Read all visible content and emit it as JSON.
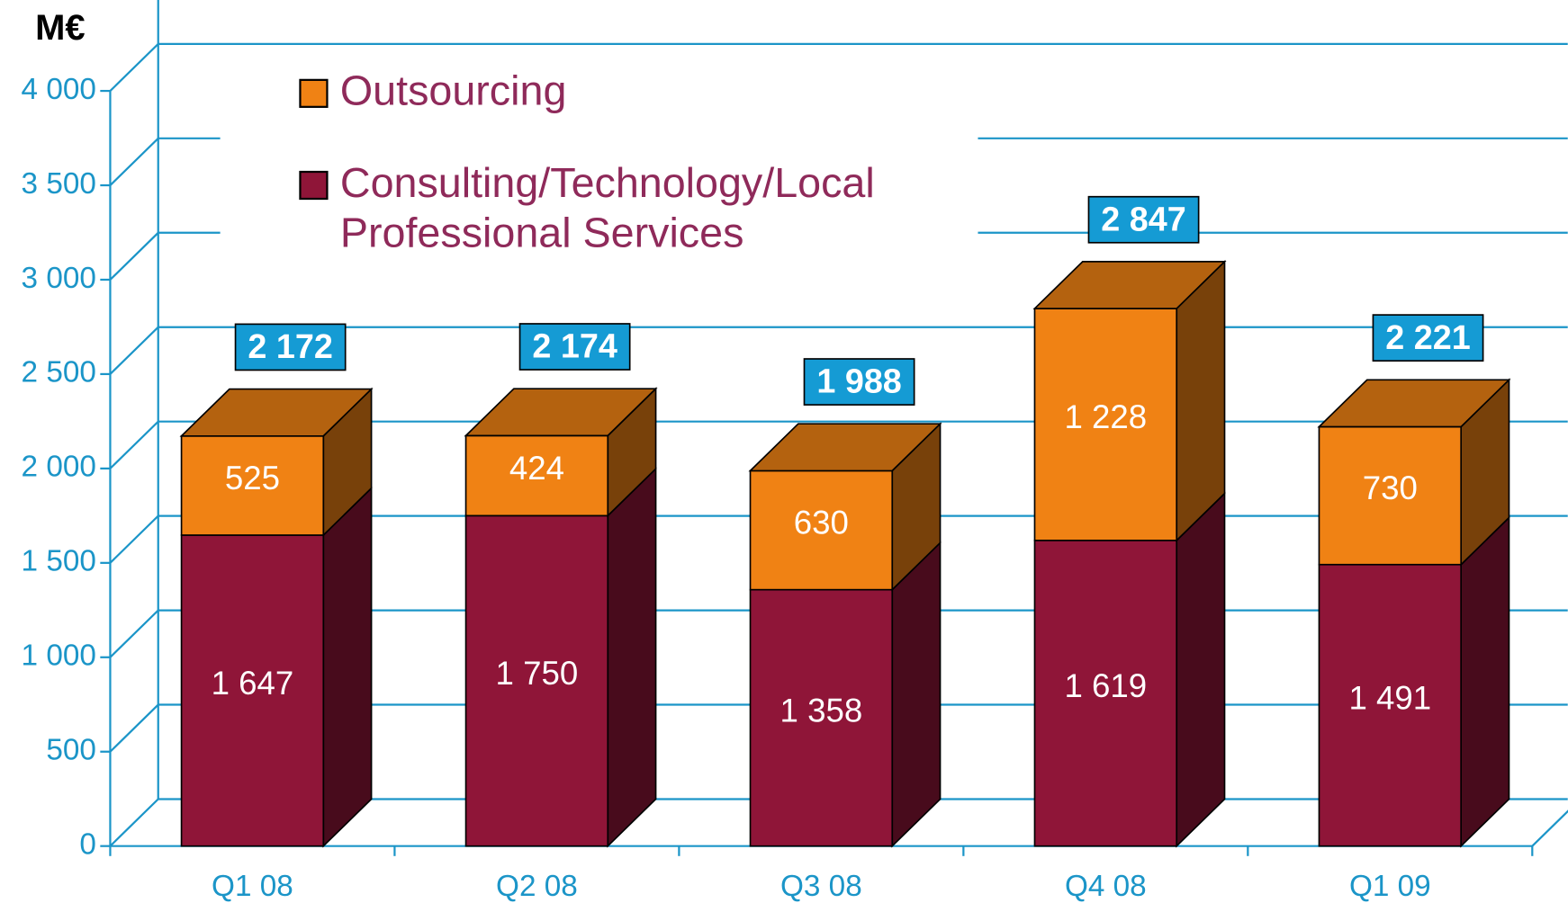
{
  "chart_data": {
    "type": "bar3d_stacked",
    "y_axis_label": "M€",
    "categories": [
      "Q1 08",
      "Q2 08",
      "Q3 08",
      "Q4 08",
      "Q1 09"
    ],
    "series": [
      {
        "name": "Consulting/Technology/Local Professional Services",
        "color": "#8f1538",
        "values": [
          1647,
          1750,
          1358,
          1619,
          1491
        ],
        "value_labels": [
          "1 647",
          "1 750",
          "1 358",
          "1 619",
          "1 491"
        ]
      },
      {
        "name": "Outsourcing",
        "color": "#f08214",
        "values": [
          525,
          424,
          630,
          1228,
          730
        ],
        "value_labels": [
          "525",
          "424",
          "630",
          "1 228",
          "730"
        ]
      }
    ],
    "totals": {
      "values": [
        2172,
        2174,
        1988,
        2847,
        2221
      ],
      "value_labels": [
        "2 172",
        "2 174",
        "1 988",
        "2 847",
        "2 221"
      ],
      "color": "#159bd4"
    },
    "ylim": [
      0,
      4000
    ],
    "yticks": [
      0,
      500,
      {
        "value": 1000,
        "label": "1 000"
      },
      {
        "value": 1500,
        "label": "1 500"
      },
      {
        "value": 2000,
        "label": "2 000"
      },
      {
        "value": 2500,
        "label": "2 500"
      },
      {
        "value": 3000,
        "label": "3 000"
      },
      {
        "value": 3500,
        "label": "3 500"
      },
      {
        "value": 4000,
        "label": "4 000"
      }
    ],
    "grid": true,
    "axis_color": "#1b95c8"
  }
}
